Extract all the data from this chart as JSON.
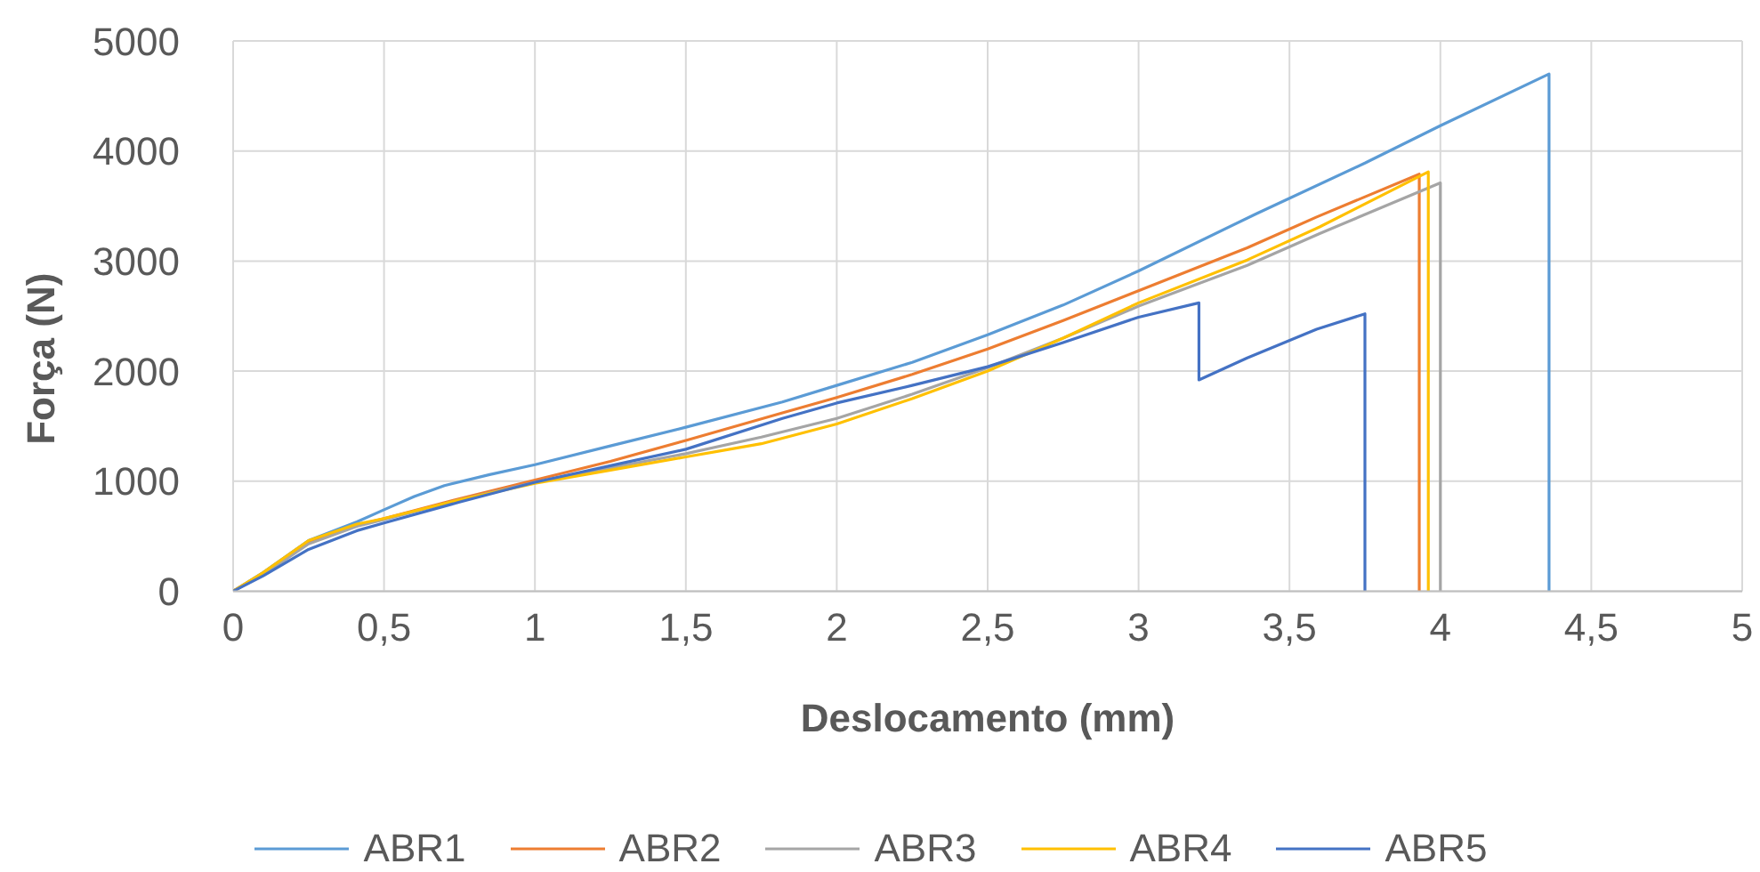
{
  "chart_data": {
    "type": "line",
    "xlabel": "Deslocamento (mm)",
    "ylabel": "Força (N)",
    "xlim": [
      0,
      5
    ],
    "xticks": [
      0,
      {
        "value": 0.5,
        "label": "0,5"
      },
      1,
      {
        "value": 1.5,
        "label": "1,5"
      },
      2,
      {
        "value": 2.5,
        "label": "2,5"
      },
      3,
      {
        "value": 3.5,
        "label": "3,5"
      },
      4,
      {
        "value": 4.5,
        "label": "4,5"
      },
      5
    ],
    "ylim": [
      0,
      5000
    ],
    "yticks": [
      0,
      1000,
      2000,
      3000,
      4000,
      5000
    ],
    "grid": true,
    "legend": "bottom",
    "line_style": "solid",
    "series": [
      {
        "name": "ABR1",
        "color": "#5b9bd5",
        "x": [
          0,
          0.1,
          0.25,
          0.41,
          0.5,
          0.6,
          0.7,
          0.85,
          1,
          1.25,
          1.5,
          1.82,
          2,
          2.25,
          2.5,
          2.75,
          3,
          3.39,
          3.75,
          4,
          4.36,
          4.36
        ],
        "values": [
          0,
          170,
          460,
          630,
          740,
          860,
          960,
          1060,
          1150,
          1320,
          1490,
          1720,
          1870,
          2080,
          2330,
          2600,
          2910,
          3430,
          3890,
          4230,
          4700,
          0
        ]
      },
      {
        "name": "ABR2",
        "color": "#ed7d31",
        "x": [
          0,
          0.1,
          0.25,
          0.41,
          0.5,
          0.75,
          1,
          1.25,
          1.5,
          1.82,
          2,
          2.25,
          2.5,
          2.75,
          3,
          3.36,
          3.59,
          3.93,
          3.93
        ],
        "values": [
          0,
          160,
          440,
          600,
          660,
          840,
          1010,
          1180,
          1370,
          1620,
          1760,
          1970,
          2200,
          2460,
          2730,
          3120,
          3400,
          3790,
          0
        ]
      },
      {
        "name": "ABR3",
        "color": "#a5a5a5",
        "x": [
          0,
          0.1,
          0.25,
          0.41,
          0.5,
          0.75,
          1,
          1.25,
          1.5,
          1.75,
          2,
          2.25,
          2.5,
          2.75,
          3,
          3.36,
          3.6,
          4,
          4
        ],
        "values": [
          0,
          150,
          430,
          590,
          650,
          830,
          990,
          1120,
          1250,
          1400,
          1570,
          1790,
          2030,
          2300,
          2590,
          2960,
          3250,
          3710,
          0
        ]
      },
      {
        "name": "ABR4",
        "color": "#ffc000",
        "x": [
          0,
          0.1,
          0.25,
          0.41,
          0.5,
          0.75,
          1,
          1.25,
          1.5,
          1.75,
          2,
          2.25,
          2.5,
          2.75,
          3,
          3.36,
          3.6,
          3.96,
          3.96
        ],
        "values": [
          0,
          170,
          460,
          610,
          660,
          830,
          980,
          1100,
          1220,
          1340,
          1520,
          1750,
          2000,
          2300,
          2620,
          3010,
          3310,
          3810,
          0
        ]
      },
      {
        "name": "ABR5",
        "color": "#4472c4",
        "x": [
          0,
          0.1,
          0.25,
          0.41,
          0.5,
          0.75,
          1,
          1.25,
          1.5,
          1.82,
          2,
          2.25,
          2.5,
          2.75,
          3,
          3.2,
          3.2,
          3.36,
          3.59,
          3.75,
          3.75
        ],
        "values": [
          0,
          140,
          380,
          550,
          620,
          810,
          990,
          1140,
          1290,
          1570,
          1710,
          1870,
          2040,
          2260,
          2490,
          2620,
          1920,
          2120,
          2380,
          2520,
          0
        ]
      }
    ]
  }
}
